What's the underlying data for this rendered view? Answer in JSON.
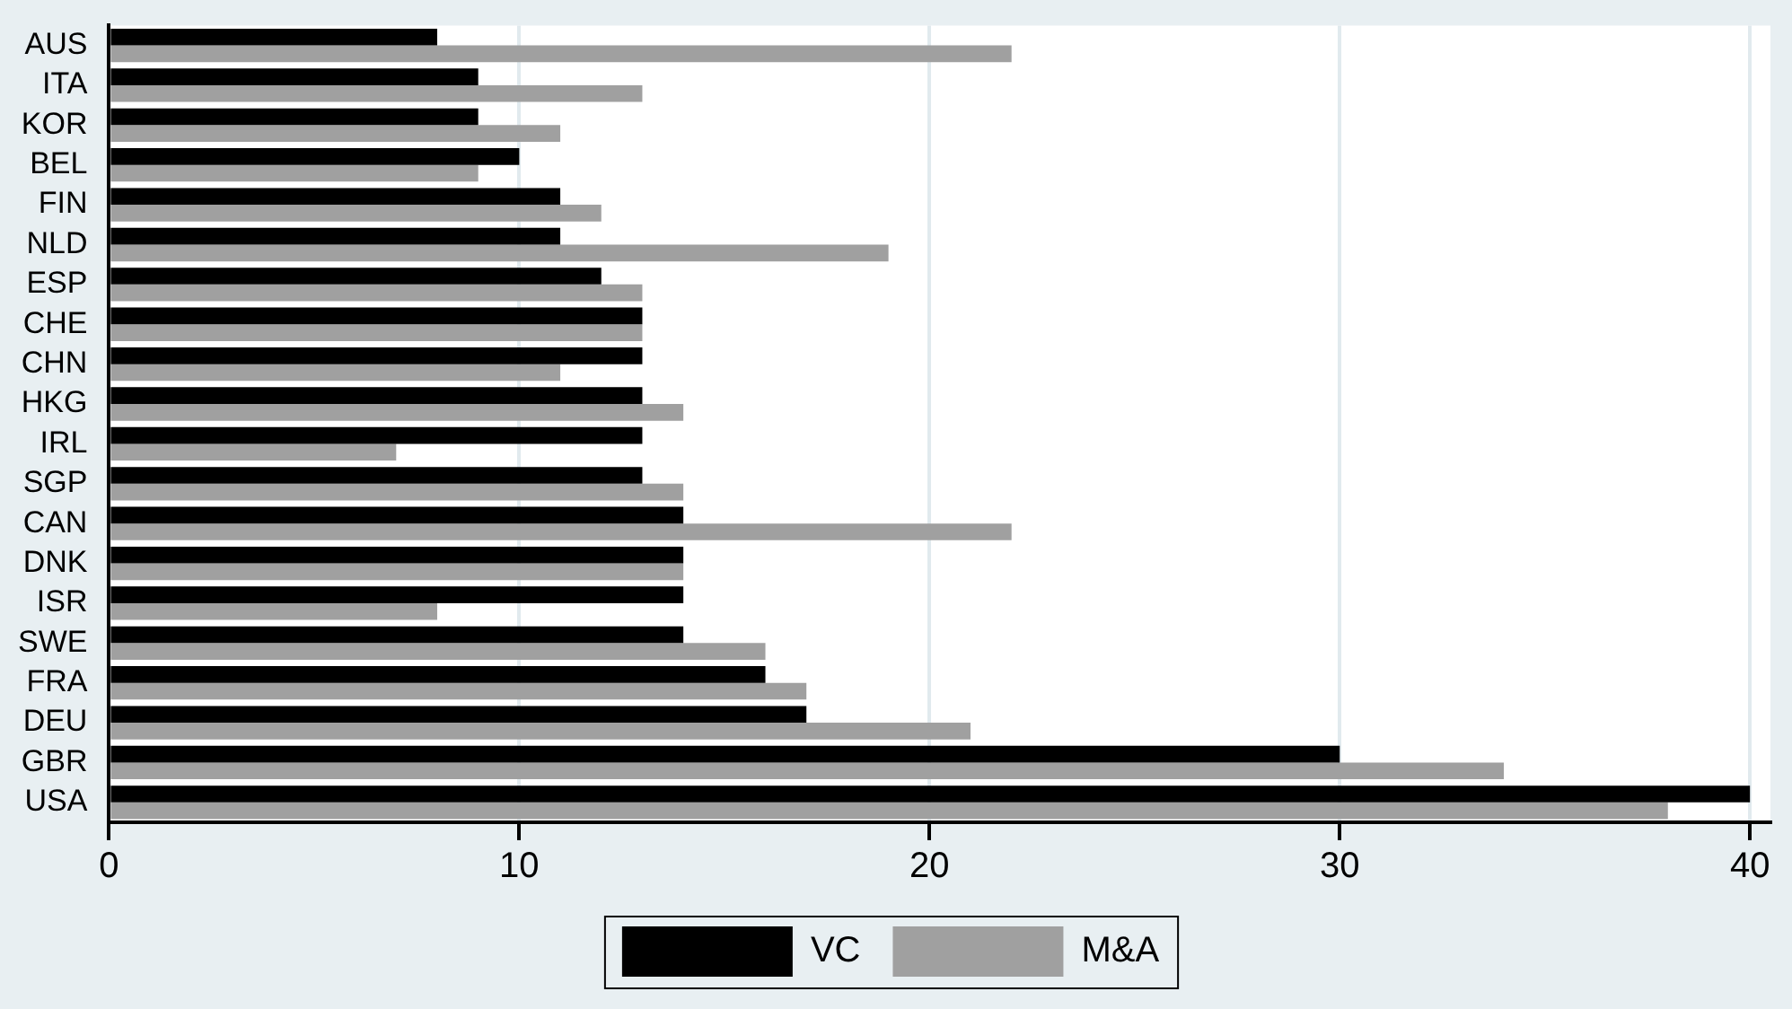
{
  "chart_data": {
    "type": "bar",
    "orientation": "horizontal",
    "categories": [
      "AUS",
      "ITA",
      "KOR",
      "BEL",
      "FIN",
      "NLD",
      "ESP",
      "CHE",
      "CHN",
      "HKG",
      "IRL",
      "SGP",
      "CAN",
      "DNK",
      "ISR",
      "SWE",
      "FRA",
      "DEU",
      "GBR",
      "USA"
    ],
    "series": [
      {
        "name": "VC",
        "color": "#000000",
        "values": [
          8,
          9,
          9,
          10,
          11,
          11,
          12,
          13,
          13,
          13,
          13,
          13,
          14,
          14,
          14,
          14,
          16,
          17,
          30,
          40
        ]
      },
      {
        "name": "M&A",
        "color": "#a0a0a0",
        "values": [
          22,
          13,
          11,
          9,
          12,
          19,
          13,
          13,
          11,
          14,
          7,
          14,
          22,
          14,
          8,
          16,
          17,
          21,
          34,
          38
        ]
      }
    ],
    "xlim": [
      0,
      40.5
    ],
    "xticks": [
      0,
      10,
      20,
      30,
      40
    ],
    "grid": "x",
    "legend": "bottom"
  }
}
